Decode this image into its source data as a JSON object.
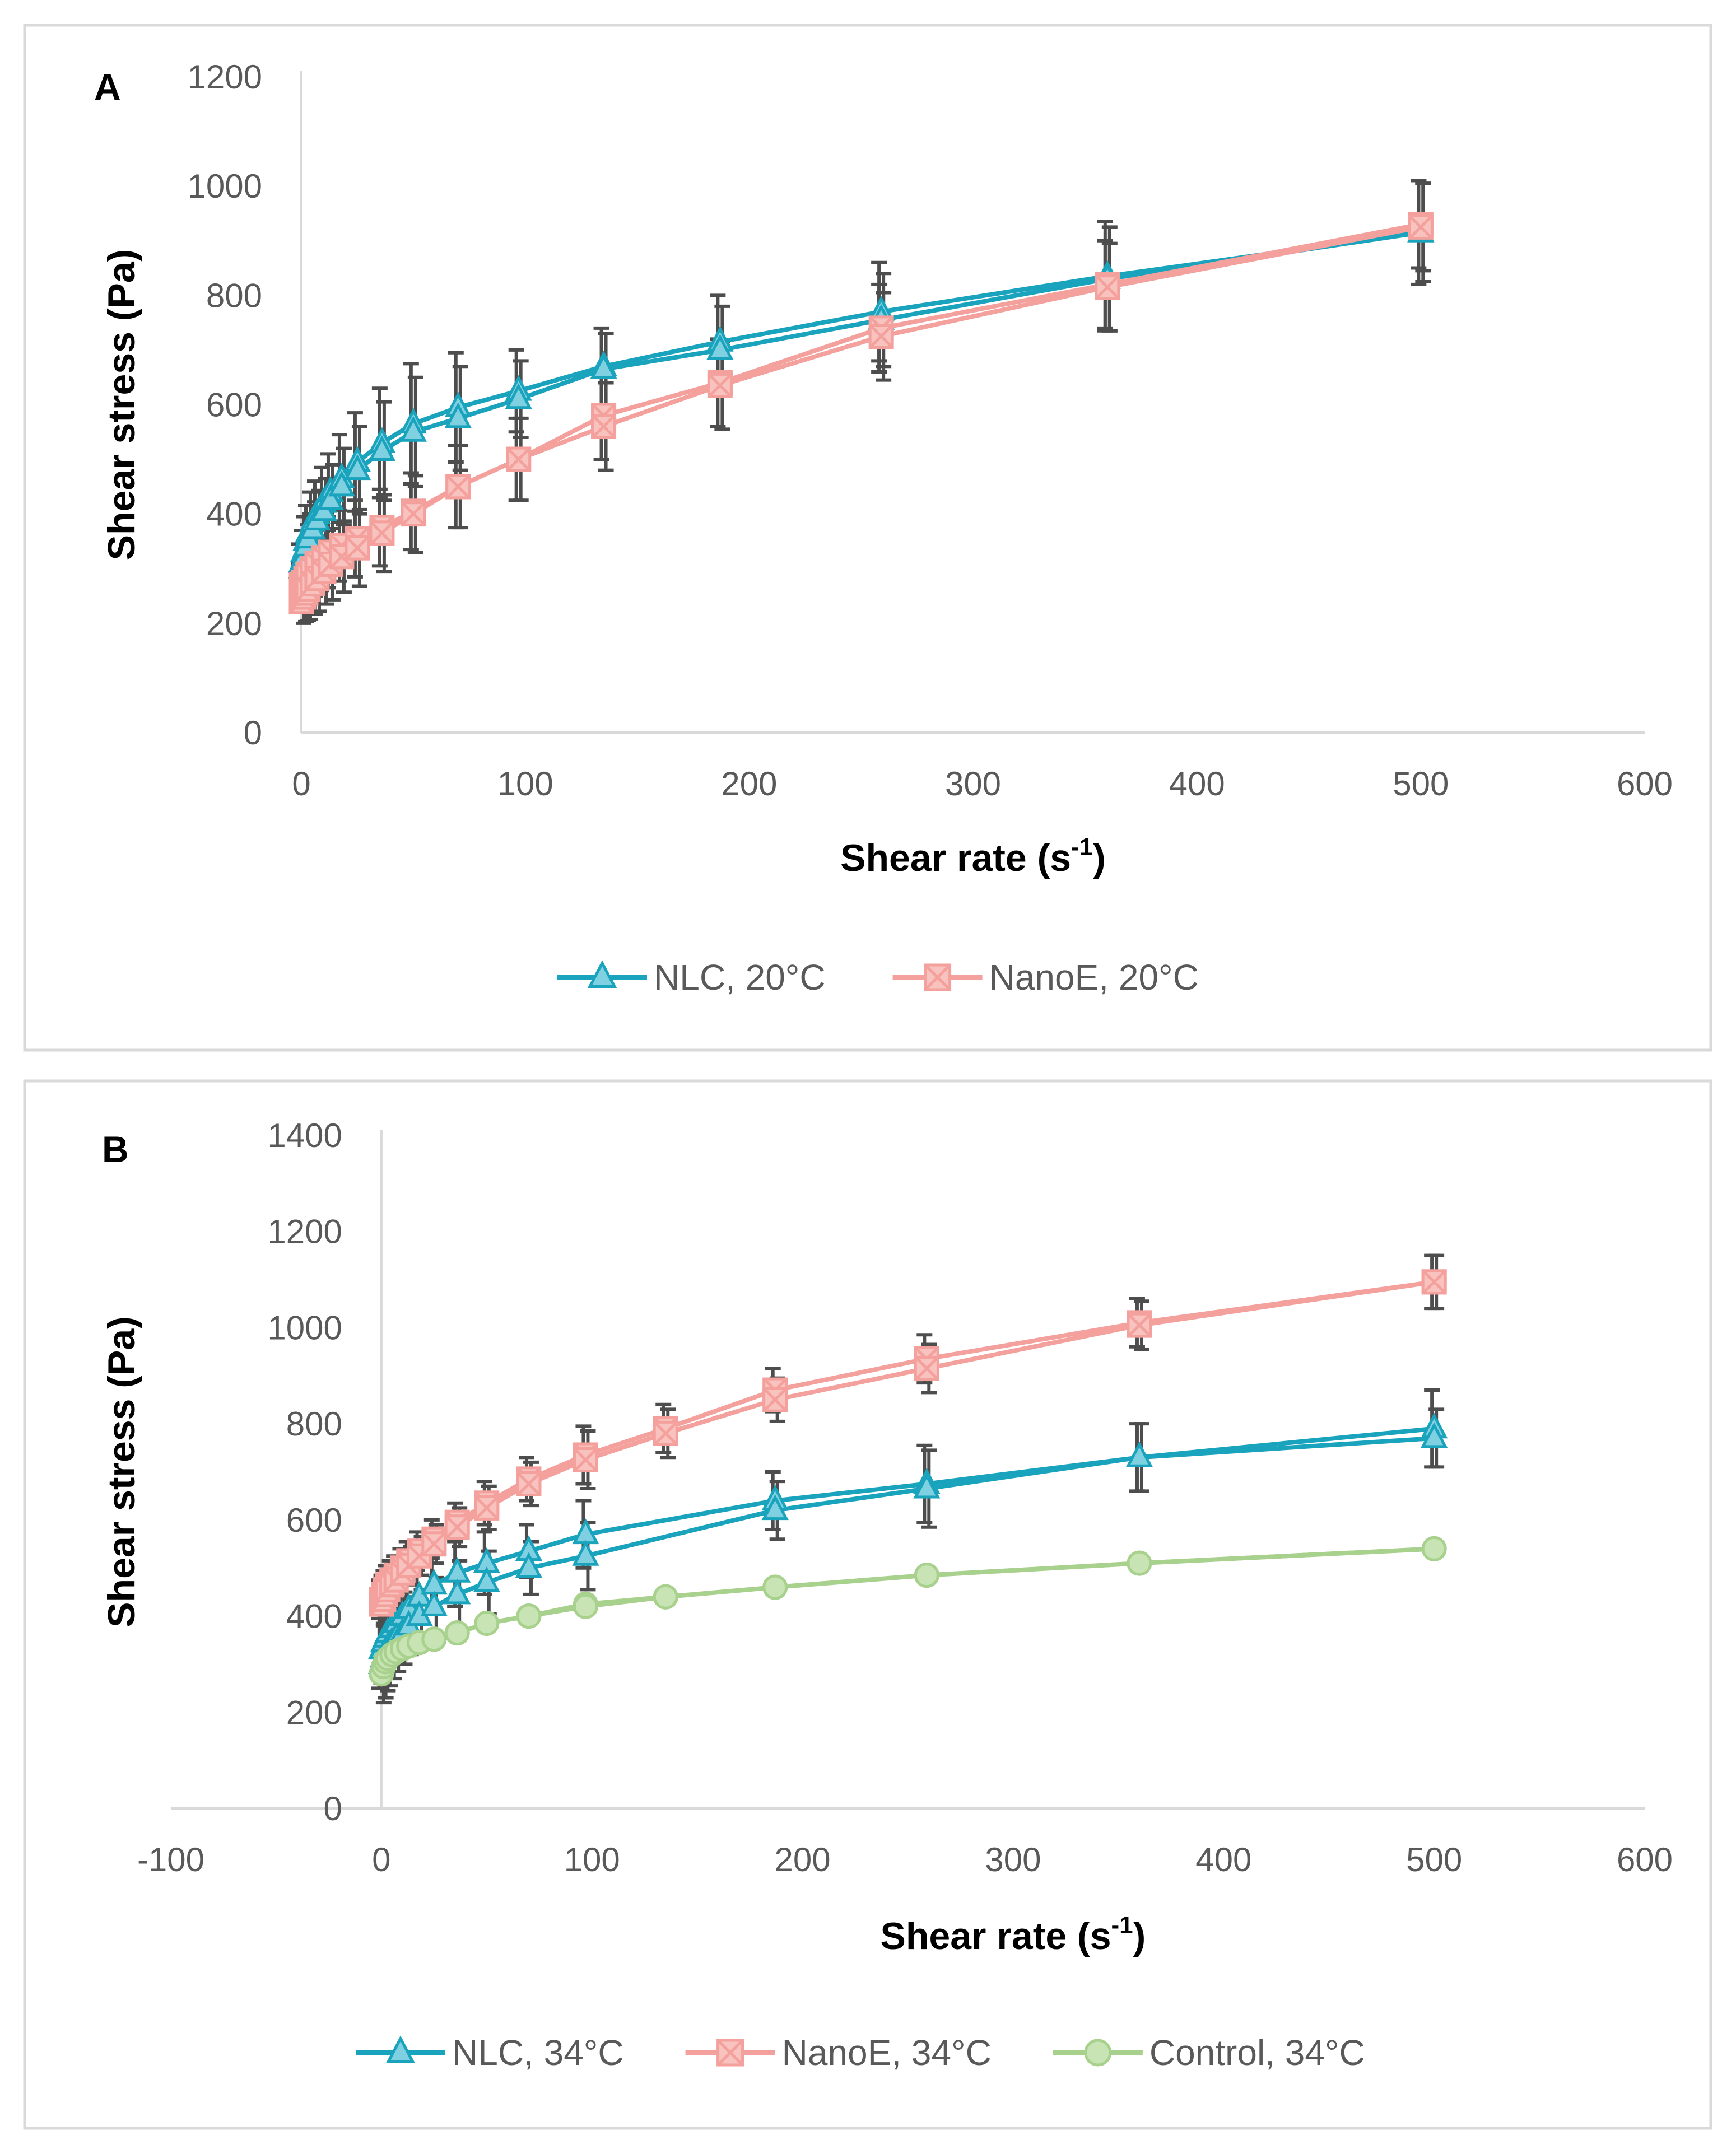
{
  "chart_data": [
    {
      "type": "line",
      "panel_label": "A",
      "xlabel": "Shear rate (s",
      "xlabel_sup": "-1",
      "xlabel_end": ")",
      "ylabel": "Shear stress (Pa)",
      "xlim": [
        0,
        600
      ],
      "ylim": [
        0,
        1200
      ],
      "xticks": [
        0,
        100,
        200,
        300,
        400,
        500,
        600
      ],
      "yticks": [
        0,
        200,
        400,
        600,
        800,
        1000,
        1200
      ],
      "legend_position": "bottom",
      "series": [
        {
          "name": "NLC, 20°C",
          "color": "#1aa3bd",
          "marker": "triangle",
          "x": [
            0,
            1,
            2,
            3,
            5,
            7,
            10,
            13,
            18,
            25,
            36,
            50,
            70,
            97,
            135,
            187,
            259,
            360,
            500
          ],
          "up": [
            310,
            330,
            350,
            365,
            385,
            400,
            420,
            440,
            465,
            495,
            530,
            565,
            595,
            625,
            670,
            715,
            770,
            835,
            915
          ],
          "down": [
            300,
            320,
            340,
            355,
            372,
            388,
            405,
            425,
            450,
            480,
            515,
            550,
            575,
            610,
            665,
            700,
            755,
            830,
            915
          ],
          "err_up": [
            35,
            40,
            45,
            50,
            55,
            60,
            65,
            70,
            80,
            90,
            100,
            110,
            100,
            75,
            70,
            85,
            90,
            100,
            95
          ],
          "err_down": [
            30,
            35,
            40,
            45,
            50,
            55,
            60,
            65,
            70,
            80,
            90,
            100,
            95,
            70,
            65,
            80,
            85,
            95,
            90
          ]
        },
        {
          "name": "NanoE, 20°C",
          "color": "#f4a09c",
          "marker": "x-square",
          "x": [
            0,
            1,
            2,
            3,
            5,
            7,
            10,
            13,
            18,
            25,
            36,
            50,
            70,
            97,
            135,
            187,
            259,
            360,
            500
          ],
          "up": [
            270,
            275,
            282,
            290,
            300,
            310,
            320,
            330,
            342,
            355,
            375,
            405,
            450,
            500,
            580,
            640,
            740,
            820,
            930
          ],
          "down": [
            240,
            248,
            255,
            262,
            272,
            282,
            295,
            308,
            322,
            338,
            365,
            400,
            450,
            500,
            560,
            635,
            725,
            815,
            925
          ],
          "err_up": [
            40,
            45,
            50,
            55,
            55,
            60,
            60,
            65,
            65,
            70,
            70,
            70,
            75,
            75,
            80,
            80,
            80,
            80,
            80
          ],
          "err_down": [
            40,
            45,
            50,
            55,
            55,
            60,
            60,
            65,
            65,
            70,
            70,
            70,
            75,
            75,
            80,
            80,
            80,
            80,
            80
          ]
        }
      ]
    },
    {
      "type": "line",
      "panel_label": "B",
      "xlabel": "Shear rate (s",
      "xlabel_sup": "-1",
      "xlabel_end": ")",
      "ylabel": "Shear stress (Pa)",
      "xlim": [
        -100,
        600
      ],
      "ylim": [
        0,
        1400
      ],
      "xticks": [
        -100,
        0,
        100,
        200,
        300,
        400,
        500,
        600
      ],
      "yticks": [
        0,
        200,
        400,
        600,
        800,
        1000,
        1200,
        1400
      ],
      "legend_position": "bottom",
      "series": [
        {
          "name": "NLC, 34°C",
          "color": "#1aa3bd",
          "marker": "triangle",
          "x": [
            0,
            1,
            2,
            3,
            5,
            7,
            10,
            13,
            18,
            25,
            36,
            50,
            70,
            97,
            187,
            259,
            360,
            500
          ],
          "up": [
            330,
            345,
            355,
            365,
            375,
            385,
            400,
            415,
            440,
            465,
            490,
            510,
            535,
            570,
            640,
            675,
            730,
            790
          ],
          "down": [
            300,
            315,
            325,
            335,
            345,
            355,
            365,
            380,
            400,
            420,
            445,
            470,
            500,
            525,
            620,
            665,
            730,
            770
          ],
          "err_up": [
            80,
            85,
            80,
            80,
            75,
            70,
            65,
            60,
            55,
            60,
            70,
            65,
            55,
            70,
            60,
            80,
            70,
            80
          ],
          "err_down": [
            80,
            85,
            80,
            80,
            75,
            70,
            65,
            60,
            55,
            60,
            70,
            65,
            55,
            70,
            60,
            80,
            70,
            60
          ]
        },
        {
          "name": "NanoE, 34°C",
          "color": "#f4a09c",
          "marker": "x-square",
          "x": [
            0,
            1,
            2,
            3,
            5,
            7,
            10,
            13,
            18,
            25,
            36,
            50,
            70,
            97,
            135,
            187,
            259,
            360,
            500
          ],
          "up": [
            435,
            445,
            455,
            465,
            475,
            485,
            500,
            515,
            535,
            560,
            595,
            635,
            685,
            735,
            790,
            870,
            935,
            1010,
            1095
          ],
          "down": [
            425,
            435,
            445,
            455,
            465,
            475,
            490,
            505,
            525,
            550,
            585,
            625,
            675,
            725,
            780,
            850,
            915,
            1005,
            1095
          ],
          "err_up": [
            40,
            40,
            40,
            40,
            40,
            40,
            40,
            40,
            40,
            40,
            40,
            45,
            45,
            60,
            50,
            45,
            50,
            50,
            55
          ],
          "err_down": [
            40,
            40,
            40,
            40,
            40,
            40,
            40,
            40,
            40,
            40,
            40,
            45,
            45,
            60,
            50,
            45,
            50,
            50,
            55
          ]
        },
        {
          "name": "Control, 34°C",
          "color": "#a9d18e",
          "marker": "circle",
          "x": [
            0,
            1,
            2,
            3,
            5,
            7,
            10,
            13,
            18,
            25,
            36,
            50,
            70,
            97,
            135,
            187,
            259,
            360,
            500
          ],
          "up": [
            280,
            295,
            305,
            312,
            320,
            326,
            332,
            338,
            345,
            352,
            365,
            385,
            400,
            425,
            440,
            460,
            485,
            510,
            540
          ],
          "down": [
            280,
            295,
            305,
            312,
            320,
            326,
            332,
            338,
            345,
            352,
            365,
            385,
            400,
            420,
            440,
            460,
            485,
            510,
            540
          ],
          "err_up": [
            0,
            0,
            0,
            0,
            0,
            0,
            0,
            0,
            0,
            0,
            0,
            0,
            0,
            0,
            0,
            0,
            0,
            0,
            0
          ],
          "err_down": [
            0,
            0,
            0,
            0,
            0,
            0,
            0,
            0,
            0,
            0,
            0,
            0,
            0,
            0,
            0,
            0,
            0,
            0,
            0
          ]
        }
      ]
    }
  ]
}
